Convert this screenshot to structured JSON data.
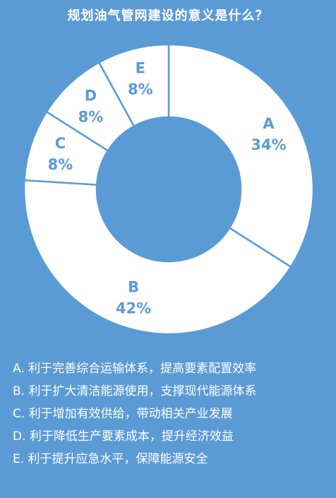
{
  "title": "规划油气管网建设的意义是什么？",
  "colors": {
    "background": "#5b9bd5",
    "slice_fill": "#ffffff",
    "slice_stroke": "#5b9bd5",
    "label_text": "#5b9bd5"
  },
  "chart_data": {
    "type": "pie",
    "donut": true,
    "slices": [
      {
        "label": "A",
        "value": 34,
        "value_label": "34%"
      },
      {
        "label": "B",
        "value": 42,
        "value_label": "42%"
      },
      {
        "label": "C",
        "value": 8,
        "value_label": "8%"
      },
      {
        "label": "D",
        "value": 8,
        "value_label": "8%"
      },
      {
        "label": "E",
        "value": 8,
        "value_label": "8%"
      }
    ]
  },
  "legend": [
    "A. 利于完善综合运输体系，提高要素配置效率",
    "B. 利于扩大清洁能源使用，支撑现代能源体系",
    "C. 利于增加有效供给，带动相关产业发展",
    "D. 利于降低生产要素成本，提升经济效益",
    "E. 利于提升应急水平，保障能源安全"
  ]
}
